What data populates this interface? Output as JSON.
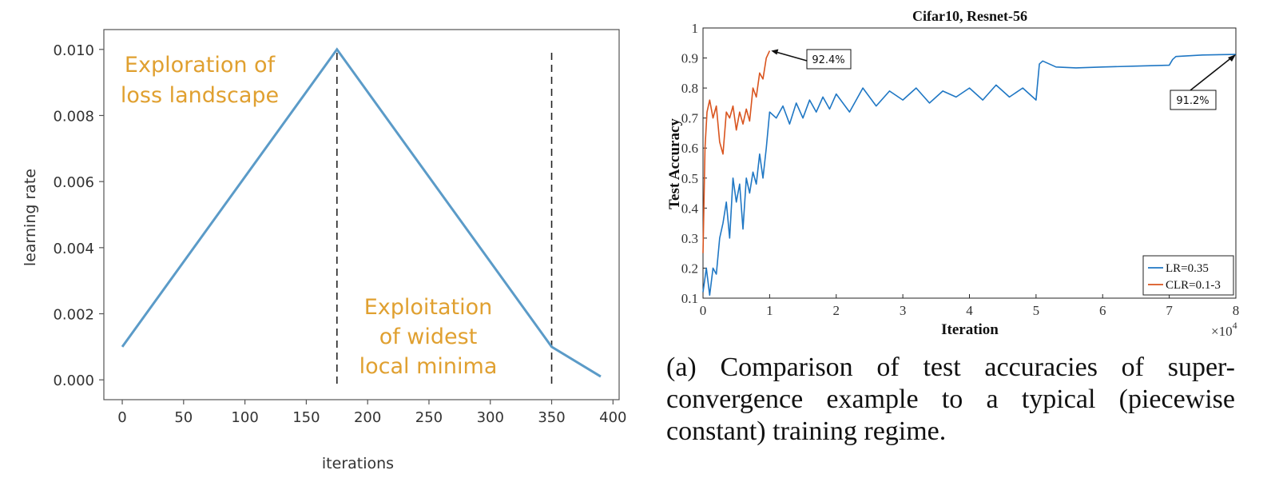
{
  "chart_data": [
    {
      "type": "line",
      "title": "",
      "xlabel": "iterations",
      "ylabel": "learning rate",
      "xlim": [
        -15,
        405
      ],
      "ylim": [
        -0.0006,
        0.0106
      ],
      "xticks": [
        0,
        50,
        100,
        150,
        200,
        250,
        300,
        350,
        400
      ],
      "xtick_labels": [
        "0",
        "50",
        "100",
        "150",
        "200",
        "250",
        "300",
        "350",
        "400"
      ],
      "yticks": [
        0.0,
        0.002,
        0.004,
        0.006,
        0.008,
        0.01
      ],
      "ytick_labels": [
        "0.000",
        "0.002",
        "0.004",
        "0.006",
        "0.008",
        "0.010"
      ],
      "grid": false,
      "series": [
        {
          "x": [
            0,
            175,
            350,
            390
          ],
          "y": [
            0.001,
            0.01,
            0.001,
            0.0001
          ]
        }
      ],
      "vlines": [
        175,
        350
      ],
      "annotations": [
        {
          "text": [
            "Exploration of",
            "loss landscape"
          ],
          "color": "#e0a030"
        },
        {
          "text": [
            "Exploitation",
            "of widest",
            "local minima"
          ],
          "color": "#e0a030"
        }
      ],
      "line_color": "#5b9bc8"
    },
    {
      "type": "line",
      "title": "Cifar10, Resnet-56",
      "xlabel": "Iteration",
      "ylabel": "Test Accuracy",
      "x_multiplier": "×10",
      "x_multiplier_exp": "4",
      "xlim": [
        0,
        8
      ],
      "ylim": [
        0.1,
        1.0
      ],
      "xticks": [
        0,
        1,
        2,
        3,
        4,
        5,
        6,
        7,
        8
      ],
      "xtick_labels": [
        "0",
        "1",
        "2",
        "3",
        "4",
        "5",
        "6",
        "7",
        "8"
      ],
      "yticks": [
        0.1,
        0.2,
        0.3,
        0.4,
        0.5,
        0.6,
        0.7,
        0.8,
        0.9,
        1.0
      ],
      "ytick_labels": [
        "0.1",
        "0.2",
        "0.3",
        "0.4",
        "0.5",
        "0.6",
        "0.7",
        "0.8",
        "0.9",
        "1"
      ],
      "grid": false,
      "legend_position": "bottom-right",
      "series": [
        {
          "name": "LR=0.35",
          "color": "#1f77c4",
          "x": [
            0,
            0.05,
            0.1,
            0.15,
            0.2,
            0.25,
            0.3,
            0.35,
            0.4,
            0.45,
            0.5,
            0.55,
            0.6,
            0.65,
            0.7,
            0.75,
            0.8,
            0.85,
            0.9,
            0.95,
            1.0,
            1.1,
            1.2,
            1.3,
            1.4,
            1.5,
            1.6,
            1.7,
            1.8,
            1.9,
            2.0,
            2.2,
            2.4,
            2.6,
            2.8,
            3.0,
            3.2,
            3.4,
            3.6,
            3.8,
            4.0,
            4.2,
            4.4,
            4.6,
            4.8,
            4.95,
            5.0,
            5.05,
            5.1,
            5.3,
            5.6,
            6.0,
            6.5,
            7.0,
            7.05,
            7.1,
            7.5,
            8.0
          ],
          "y": [
            0.12,
            0.2,
            0.11,
            0.2,
            0.18,
            0.3,
            0.35,
            0.42,
            0.3,
            0.5,
            0.42,
            0.48,
            0.33,
            0.5,
            0.45,
            0.52,
            0.48,
            0.58,
            0.5,
            0.6,
            0.72,
            0.7,
            0.74,
            0.68,
            0.75,
            0.7,
            0.76,
            0.72,
            0.77,
            0.73,
            0.78,
            0.72,
            0.8,
            0.74,
            0.79,
            0.76,
            0.8,
            0.75,
            0.79,
            0.77,
            0.8,
            0.76,
            0.81,
            0.77,
            0.8,
            0.77,
            0.76,
            0.88,
            0.89,
            0.87,
            0.867,
            0.87,
            0.873,
            0.876,
            0.895,
            0.905,
            0.91,
            0.912
          ]
        },
        {
          "name": "CLR=0.1-3",
          "color": "#d9541e",
          "x": [
            0,
            0.03,
            0.06,
            0.1,
            0.15,
            0.2,
            0.25,
            0.3,
            0.35,
            0.4,
            0.45,
            0.5,
            0.55,
            0.6,
            0.65,
            0.7,
            0.75,
            0.8,
            0.85,
            0.9,
            0.95,
            1.0
          ],
          "y": [
            0.25,
            0.6,
            0.72,
            0.76,
            0.7,
            0.74,
            0.62,
            0.58,
            0.72,
            0.7,
            0.74,
            0.66,
            0.72,
            0.68,
            0.73,
            0.69,
            0.8,
            0.77,
            0.85,
            0.83,
            0.9,
            0.924
          ]
        }
      ],
      "annotations": [
        {
          "text": "92.4%"
        },
        {
          "text": "91.2%"
        }
      ]
    }
  ],
  "caption": "(a) Comparison of test accuracies of super-convergence example to a typical (piecewise constant) training regime."
}
